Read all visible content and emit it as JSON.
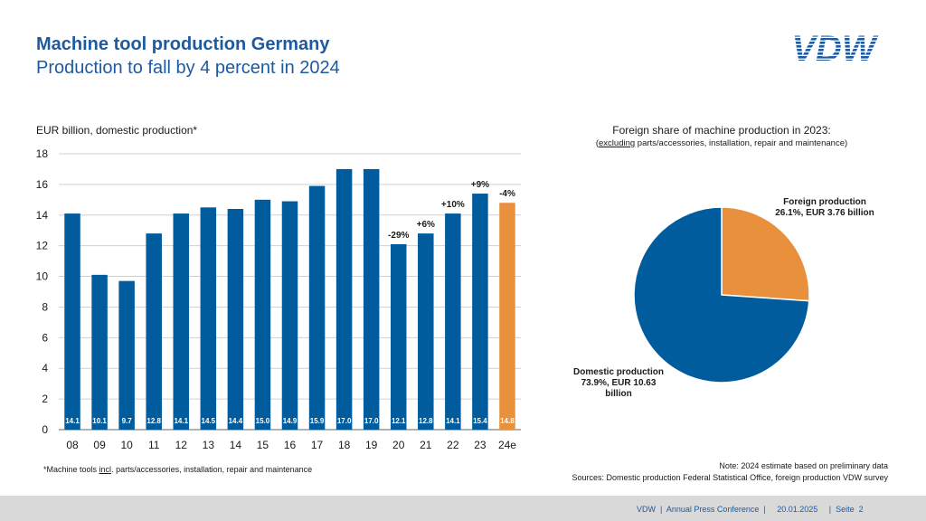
{
  "header": {
    "title": "Machine tool production Germany",
    "subtitle": "Production to fall by 4 percent in 2024",
    "logo_text": "VDW"
  },
  "colors": {
    "accent": "#1e5aa0",
    "bar_blue": "#005c9c",
    "bar_orange": "#e8903c",
    "footer_bg": "#d9d9d9"
  },
  "bar_unit_label": "EUR billion, domestic production*",
  "pie_title": "Foreign share of machine production in 2023:",
  "pie_subtitle": {
    "underlined": "excluding",
    "rest": " parts/accessories, installation, repair and maintenance)",
    "open_paren": "("
  },
  "pie_labels": {
    "foreign_line1": "Foreign production",
    "foreign_line2": "26.1%, EUR 3.76 billion",
    "domestic_line1": "Domestic production",
    "domestic_line2": "73.9%, EUR 10.63",
    "domestic_line3": "billion"
  },
  "footnote": {
    "before": "*Machine tools ",
    "underlined": "incl",
    "after": ". parts/accessories, installation, repair and maintenance"
  },
  "note": {
    "line1": "Note: 2024 estimate based on preliminary data",
    "line2": "Sources: Domestic production Federal Statistical Office, foreign production VDW survey"
  },
  "footer": {
    "text": "VDW  |  Annual Press Conference  |     20.01.2025     |  Seite  2"
  },
  "chart_data": [
    {
      "type": "bar",
      "title": "",
      "ylabel": "EUR billion, domestic production*",
      "xlabel": "",
      "ylim": [
        0,
        18
      ],
      "yticks": [
        0,
        2,
        4,
        6,
        8,
        10,
        12,
        14,
        16,
        18
      ],
      "categories": [
        "08",
        "09",
        "10",
        "11",
        "12",
        "13",
        "14",
        "15",
        "16",
        "17",
        "18",
        "19",
        "20",
        "21",
        "22",
        "23",
        "24e"
      ],
      "values": [
        14.1,
        10.1,
        9.7,
        12.8,
        14.1,
        14.5,
        14.4,
        15.0,
        14.9,
        15.9,
        17.0,
        17.0,
        12.1,
        12.8,
        14.1,
        15.4,
        14.8
      ],
      "value_labels": [
        "14.1",
        "10.1",
        "9.7",
        "12.8",
        "14.1",
        "14.5",
        "14.4",
        "15.0",
        "14.9",
        "15.9",
        "17.0",
        "17.0",
        "12.1",
        "12.8",
        "14.1",
        "15.4",
        "14.8"
      ],
      "highlight_index": 16,
      "grid": true,
      "annotations": [
        {
          "index": 12,
          "text": "-29%"
        },
        {
          "index": 13,
          "text": "+6%"
        },
        {
          "index": 14,
          "text": "+10%"
        },
        {
          "index": 15,
          "text": "+9%"
        },
        {
          "index": 16,
          "text": "-4%"
        }
      ]
    },
    {
      "type": "pie",
      "title": "Foreign share of machine production in 2023:",
      "slices": [
        {
          "name": "Foreign production",
          "percent": 26.1,
          "value": 3.76
        },
        {
          "name": "Domestic production",
          "percent": 73.9,
          "value": 10.63
        }
      ]
    }
  ]
}
